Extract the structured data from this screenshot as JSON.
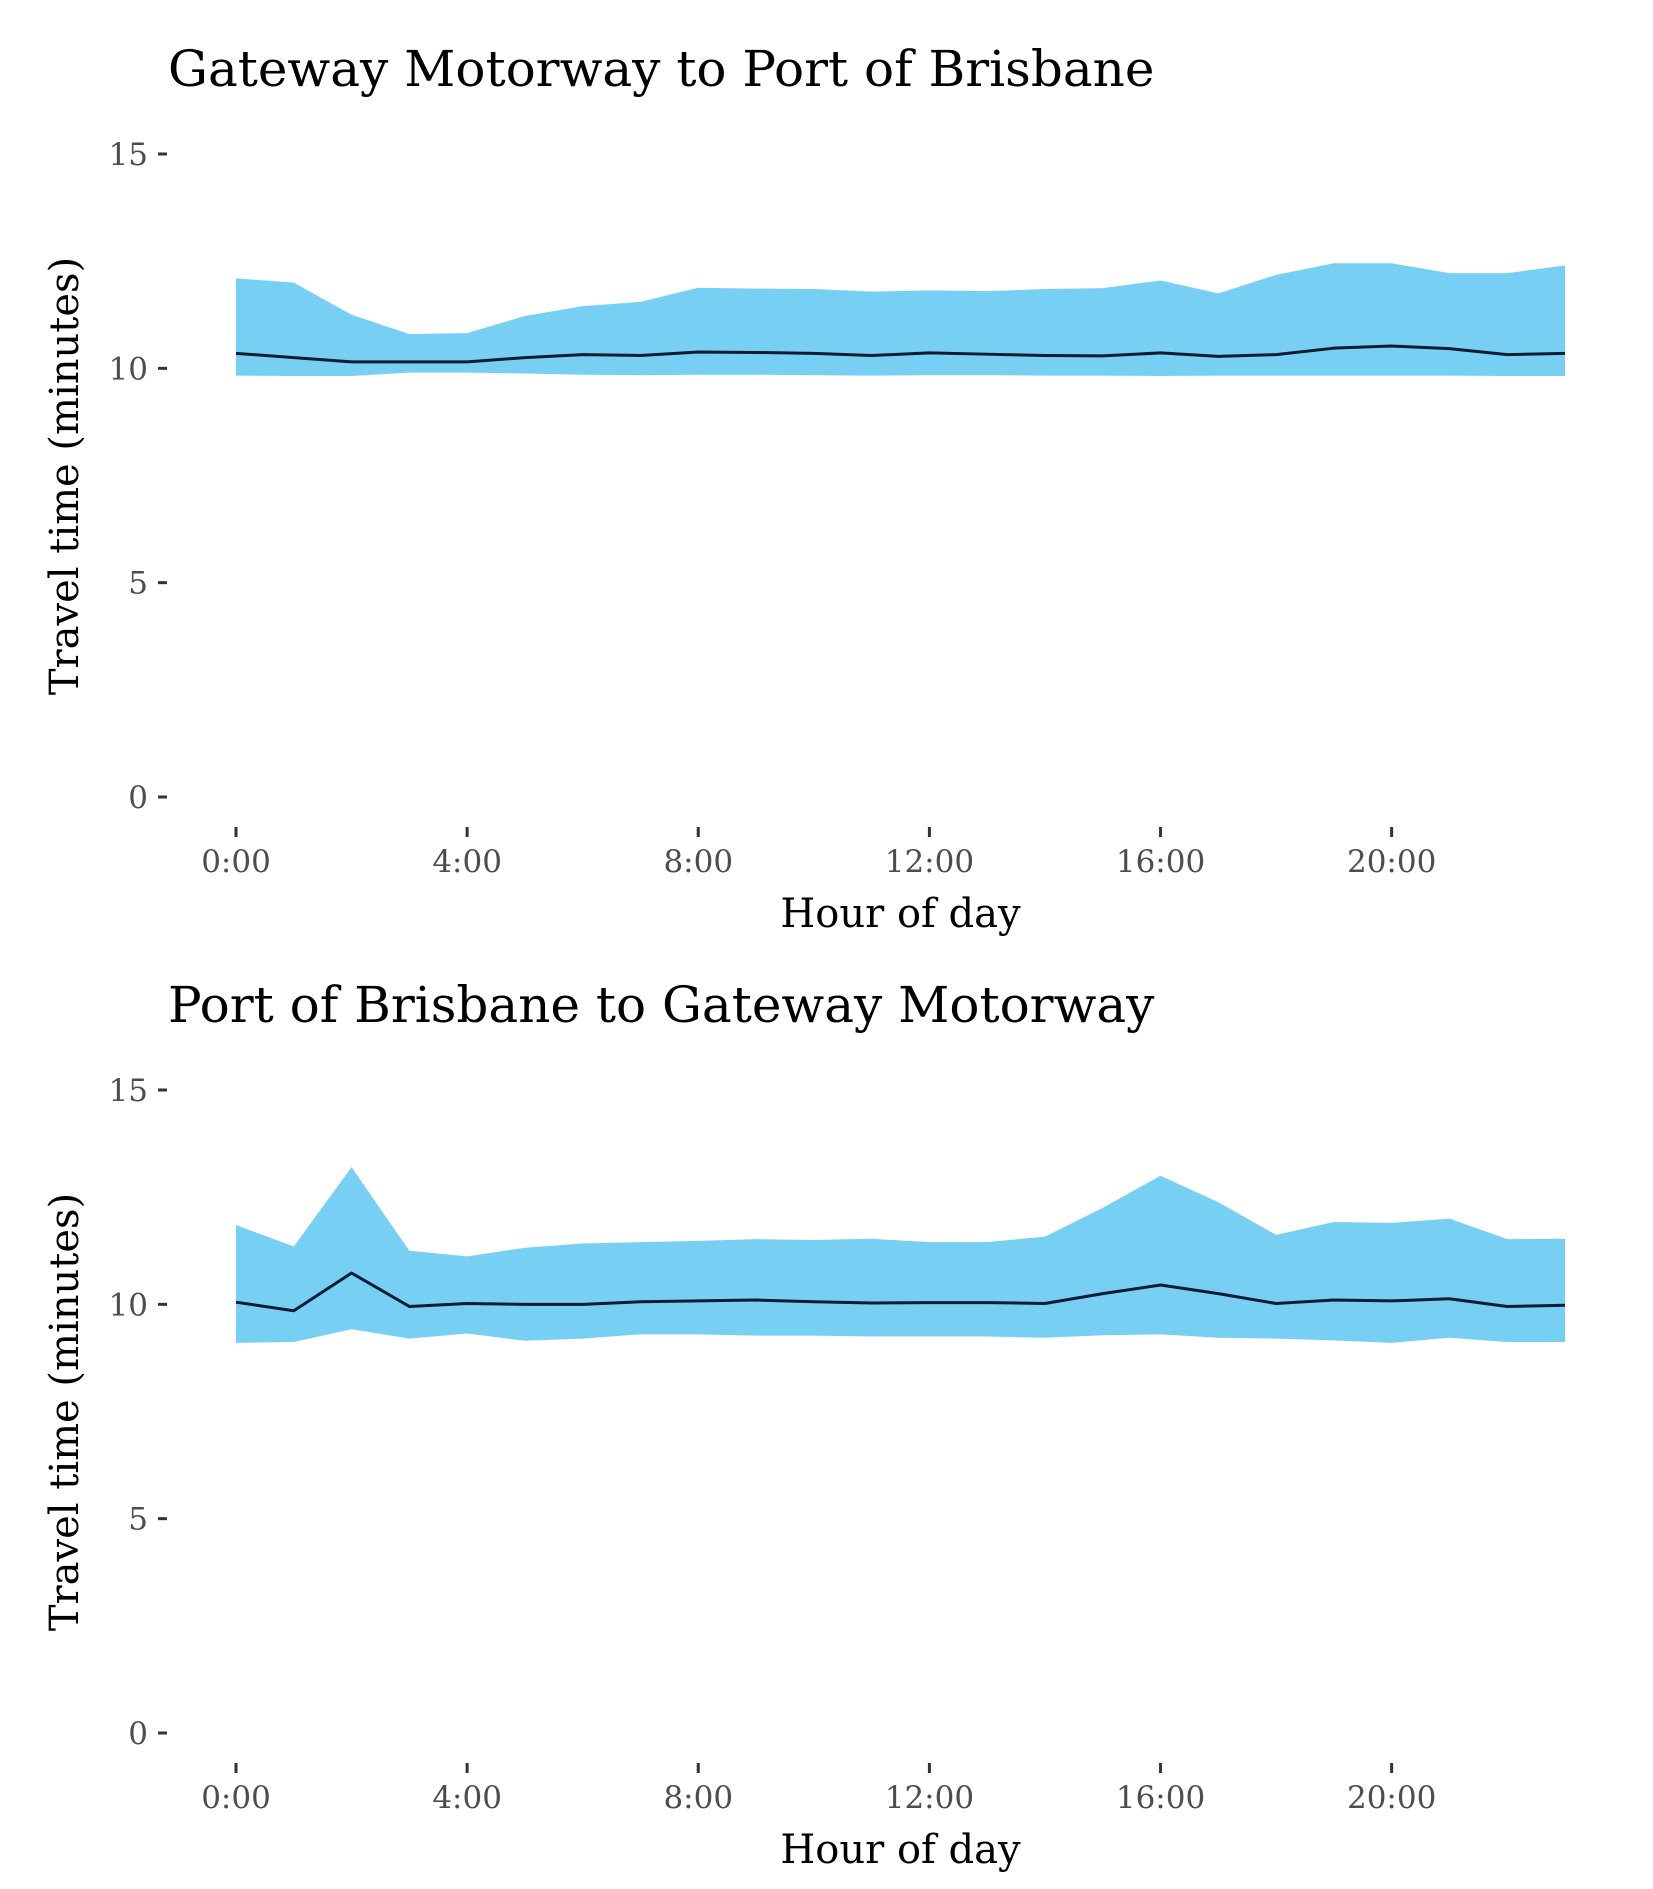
{
  "colors": {
    "band": "#77d0f3",
    "line": "#0d1b33",
    "tick": "#333333",
    "tick_text": "#4d4d4d"
  },
  "chart_data": [
    {
      "type": "area",
      "title": "Gateway Motorway to Port of Brisbane",
      "xlabel": "Hour of day",
      "ylabel": "Travel time (minutes)",
      "ylim": [
        0,
        15
      ],
      "xlim": [
        0,
        23
      ],
      "x_ticks": [
        0,
        4,
        8,
        12,
        16,
        20
      ],
      "x_tick_labels": [
        "0:00",
        "4:00",
        "8:00",
        "12:00",
        "16:00",
        "20:00"
      ],
      "y_ticks": [
        0,
        5,
        10,
        15
      ],
      "y_tick_labels": [
        "0",
        "5",
        "10",
        "15"
      ],
      "grid": false,
      "x": [
        0,
        1,
        2,
        3,
        4,
        5,
        6,
        7,
        8,
        9,
        10,
        11,
        12,
        13,
        14,
        15,
        16,
        17,
        18,
        19,
        20,
        21,
        22,
        23
      ],
      "series": [
        {
          "role": "median",
          "values": [
            10.35,
            10.25,
            10.15,
            10.15,
            10.15,
            10.25,
            10.32,
            10.3,
            10.38,
            10.37,
            10.35,
            10.3,
            10.36,
            10.33,
            10.3,
            10.29,
            10.36,
            10.28,
            10.32,
            10.47,
            10.52,
            10.46,
            10.32,
            10.35
          ]
        },
        {
          "role": "lower",
          "values": [
            9.83,
            9.82,
            9.82,
            9.9,
            9.9,
            9.88,
            9.85,
            9.84,
            9.85,
            9.85,
            9.84,
            9.83,
            9.84,
            9.84,
            9.83,
            9.83,
            9.82,
            9.83,
            9.83,
            9.83,
            9.83,
            9.83,
            9.82,
            9.82
          ]
        },
        {
          "role": "upper",
          "values": [
            12.1,
            12.0,
            11.25,
            10.8,
            10.82,
            11.22,
            11.45,
            11.55,
            11.88,
            11.86,
            11.85,
            11.79,
            11.82,
            11.8,
            11.85,
            11.87,
            12.05,
            11.75,
            12.18,
            12.45,
            12.45,
            12.22,
            12.22,
            12.4
          ]
        }
      ]
    },
    {
      "type": "area",
      "title": "Port of Brisbane to Gateway Motorway",
      "xlabel": "Hour of day",
      "ylabel": "Travel time (minutes)",
      "ylim": [
        0,
        15
      ],
      "xlim": [
        0,
        23
      ],
      "x_ticks": [
        0,
        4,
        8,
        12,
        16,
        20
      ],
      "x_tick_labels": [
        "0:00",
        "4:00",
        "8:00",
        "12:00",
        "16:00",
        "20:00"
      ],
      "y_ticks": [
        0,
        5,
        10,
        15
      ],
      "y_tick_labels": [
        "0",
        "5",
        "10",
        "15"
      ],
      "grid": false,
      "x": [
        0,
        1,
        2,
        3,
        4,
        5,
        6,
        7,
        8,
        9,
        10,
        11,
        12,
        13,
        14,
        15,
        16,
        17,
        18,
        19,
        20,
        21,
        22,
        23
      ],
      "series": [
        {
          "role": "median",
          "values": [
            10.05,
            9.85,
            10.73,
            9.95,
            10.02,
            10.0,
            10.0,
            10.06,
            10.08,
            10.1,
            10.06,
            10.03,
            10.04,
            10.04,
            10.02,
            10.25,
            10.45,
            10.25,
            10.02,
            10.1,
            10.08,
            10.13,
            9.95,
            9.98
          ]
        },
        {
          "role": "lower",
          "values": [
            9.1,
            9.12,
            9.42,
            9.2,
            9.32,
            9.15,
            9.2,
            9.3,
            9.3,
            9.27,
            9.27,
            9.25,
            9.25,
            9.25,
            9.22,
            9.28,
            9.3,
            9.22,
            9.2,
            9.16,
            9.1,
            9.22,
            9.12,
            9.12
          ]
        },
        {
          "role": "upper",
          "values": [
            11.85,
            11.35,
            13.2,
            11.25,
            11.12,
            11.32,
            11.42,
            11.45,
            11.48,
            11.52,
            11.5,
            11.53,
            11.45,
            11.45,
            11.58,
            12.25,
            13.0,
            12.38,
            11.62,
            11.92,
            11.9,
            12.0,
            11.52,
            11.53
          ]
        }
      ]
    }
  ]
}
